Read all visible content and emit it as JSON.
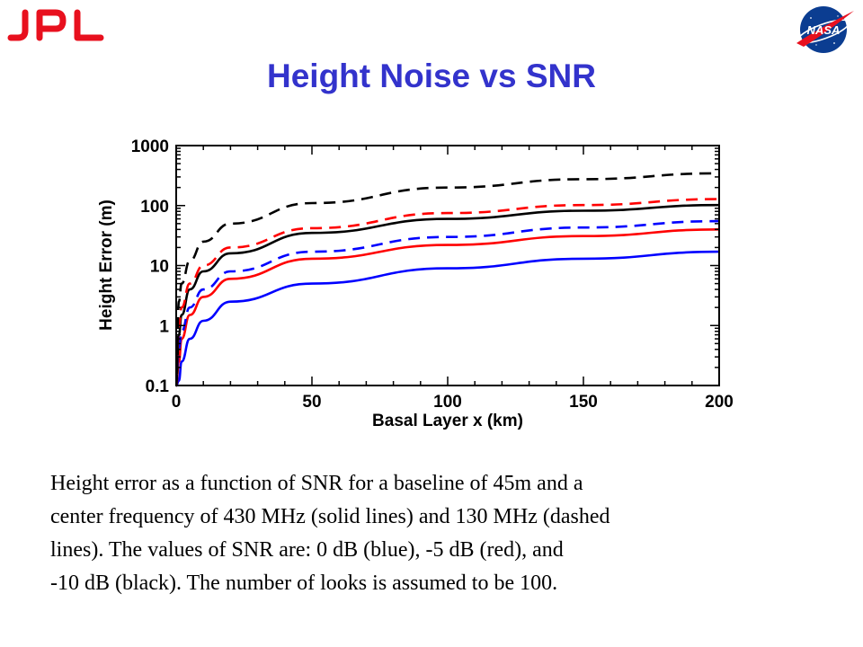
{
  "header": {
    "left_logo": "JPL",
    "right_logo": "NASA",
    "title": "Height Noise vs SNR",
    "title_color": "#3333cc",
    "logo_red": "#e8101e",
    "logo_blue": "#0b3d91"
  },
  "chart_data": {
    "type": "line",
    "title": "",
    "xlabel": "Basal Layer x (km)",
    "ylabel": "Height Error (m)",
    "xlim": [
      0,
      200
    ],
    "ylim": [
      0.1,
      1000
    ],
    "yscale": "log",
    "x_ticks": [
      "0",
      "50",
      "100",
      "150",
      "200"
    ],
    "y_ticks": [
      "0.1",
      "1",
      "10",
      "100",
      "1000"
    ],
    "grid": false,
    "legend": "none",
    "x": [
      1,
      2,
      5,
      10,
      20,
      50,
      100,
      150,
      200
    ],
    "series": [
      {
        "color": "#0000ff",
        "style": "solid",
        "values": [
          0.12,
          0.25,
          0.6,
          1.2,
          2.5,
          5.0,
          9.0,
          13.0,
          17.0
        ]
      },
      {
        "color": "#ff0000",
        "style": "solid",
        "values": [
          0.25,
          0.6,
          1.5,
          3.0,
          6.0,
          13.0,
          22.0,
          31.0,
          40.0
        ]
      },
      {
        "color": "#000000",
        "style": "solid",
        "values": [
          0.7,
          1.5,
          4.0,
          8.0,
          16.0,
          35.0,
          60.0,
          82.0,
          102.0
        ]
      },
      {
        "color": "#0000ff",
        "style": "dashed",
        "values": [
          0.4,
          0.8,
          2.0,
          4.0,
          8.0,
          17.0,
          30.0,
          43.0,
          55.0
        ]
      },
      {
        "color": "#ff0000",
        "style": "dashed",
        "values": [
          1.0,
          2.0,
          5.0,
          10.0,
          20.0,
          42.0,
          75.0,
          102.0,
          128.0
        ]
      },
      {
        "color": "#000000",
        "style": "dashed",
        "values": [
          2.5,
          5.0,
          12.0,
          25.0,
          50.0,
          110.0,
          200.0,
          275.0,
          345.0
        ]
      }
    ]
  },
  "caption": {
    "line1": "Height error as a function of SNR for a baseline of 45m and a",
    "line2": "center frequency of 430 MHz (solid lines) and 130 MHz (dashed",
    "line3": "lines). The values of SNR are: 0 dB (blue), -5 dB (red), and",
    "line4": "-10 dB (black). The number of looks is assumed to be 100."
  }
}
